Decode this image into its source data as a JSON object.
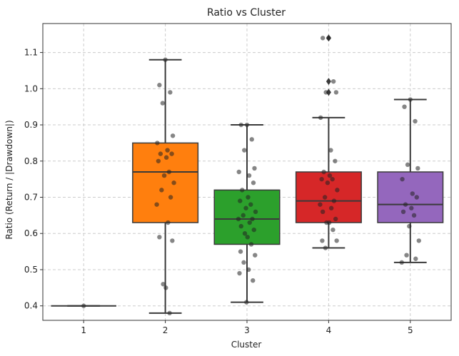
{
  "chart_data": {
    "type": "box",
    "title": "Ratio vs Cluster",
    "xlabel": "Cluster",
    "ylabel": "Ratio (Return / |Drawdown|)",
    "categories": [
      "1",
      "2",
      "3",
      "4",
      "5"
    ],
    "ylim": [
      0.36,
      1.18
    ],
    "yticks": [
      0.4,
      0.5,
      0.6,
      0.7,
      0.8,
      0.9,
      1.0,
      1.1
    ],
    "ytick_labels": [
      "0.4",
      "0.5",
      "0.6",
      "0.7",
      "0.8",
      "0.9",
      "1.0",
      "1.1"
    ],
    "grid": true,
    "boxes": [
      {
        "category": "1",
        "color": "#1f77b4",
        "whisker_low": 0.4,
        "q1": 0.4,
        "median": 0.4,
        "q3": 0.4,
        "whisker_high": 0.4,
        "outliers": [],
        "points": [
          0.4
        ]
      },
      {
        "category": "2",
        "color": "#ff7f0e",
        "whisker_low": 0.38,
        "q1": 0.63,
        "median": 0.77,
        "q3": 0.85,
        "whisker_high": 1.08,
        "outliers": [],
        "points": [
          1.08,
          1.01,
          0.99,
          0.96,
          0.87,
          0.85,
          0.83,
          0.82,
          0.82,
          0.81,
          0.8,
          0.77,
          0.76,
          0.74,
          0.72,
          0.7,
          0.68,
          0.63,
          0.59,
          0.58,
          0.46,
          0.45,
          0.38
        ]
      },
      {
        "category": "3",
        "color": "#2ca02c",
        "whisker_low": 0.41,
        "q1": 0.57,
        "median": 0.64,
        "q3": 0.72,
        "whisker_high": 0.9,
        "outliers": [],
        "points": [
          0.9,
          0.9,
          0.86,
          0.83,
          0.78,
          0.77,
          0.76,
          0.74,
          0.72,
          0.7,
          0.69,
          0.68,
          0.67,
          0.66,
          0.65,
          0.64,
          0.64,
          0.63,
          0.62,
          0.61,
          0.6,
          0.59,
          0.57,
          0.55,
          0.54,
          0.52,
          0.5,
          0.49,
          0.47,
          0.41
        ]
      },
      {
        "category": "4",
        "color": "#d62728",
        "whisker_low": 0.56,
        "q1": 0.63,
        "median": 0.69,
        "q3": 0.77,
        "whisker_high": 0.92,
        "outliers": [
          1.14,
          1.02,
          0.99
        ],
        "points": [
          1.14,
          1.14,
          1.02,
          0.99,
          0.99,
          0.92,
          0.83,
          0.8,
          0.77,
          0.76,
          0.75,
          0.75,
          0.74,
          0.72,
          0.7,
          0.69,
          0.68,
          0.67,
          0.66,
          0.64,
          0.63,
          0.63,
          0.61,
          0.58,
          0.58,
          0.56
        ]
      },
      {
        "category": "5",
        "color": "#9467bd",
        "whisker_low": 0.52,
        "q1": 0.63,
        "median": 0.68,
        "q3": 0.77,
        "whisker_high": 0.97,
        "outliers": [],
        "points": [
          0.97,
          0.95,
          0.91,
          0.79,
          0.78,
          0.75,
          0.71,
          0.7,
          0.68,
          0.67,
          0.66,
          0.65,
          0.62,
          0.58,
          0.54,
          0.53,
          0.52
        ]
      }
    ]
  }
}
